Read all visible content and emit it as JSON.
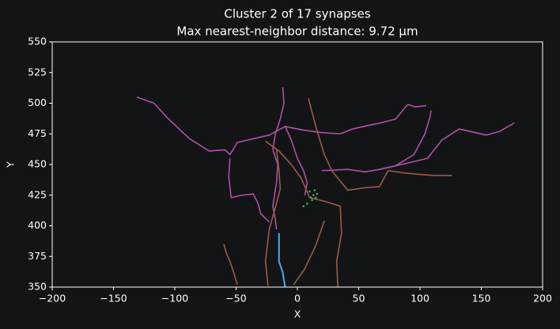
{
  "chart_data": {
    "type": "line",
    "title": "Cluster 2 of 17 synapses",
    "subtitle": "Max nearest-neighbor distance: 9.72 µm",
    "x_label": "X",
    "y_label": "Y",
    "xlim": [
      -200,
      200
    ],
    "xticks": [
      {
        "value": -200,
        "label": "−200"
      },
      {
        "value": -150,
        "label": "−150"
      },
      {
        "value": -100,
        "label": "−100"
      },
      {
        "value": -50,
        "label": "−50"
      },
      0,
      50,
      100,
      150,
      200
    ],
    "ylim": [
      350,
      550
    ],
    "yticks": [
      350,
      375,
      400,
      425,
      450,
      475,
      500,
      525,
      550
    ],
    "series": [
      {
        "color": "#b050a8",
        "x": [
          -131,
          -117,
          -106,
          -88,
          -72,
          -59,
          -55,
          -49,
          -36,
          -23,
          -10,
          5,
          20,
          35
        ],
        "values": [
          505,
          500,
          488,
          471,
          461,
          462,
          458,
          468,
          471,
          474,
          481,
          478,
          476,
          475
        ]
      },
      {
        "color": "#b050a8",
        "x": [
          -12,
          -11,
          -14,
          -18,
          -20,
          -16,
          -17,
          -20,
          -18,
          -17
        ],
        "values": [
          513,
          500,
          487,
          475,
          462,
          450,
          436,
          416,
          405,
          397
        ]
      },
      {
        "color": "#b050a8",
        "x": [
          35,
          45,
          54,
          68,
          80,
          90,
          96,
          105
        ],
        "values": [
          475,
          479,
          481,
          484,
          487,
          499,
          497,
          498
        ]
      },
      {
        "color": "#b050a8",
        "x": [
          20,
          41,
          55,
          67,
          80,
          95,
          104,
          108,
          109
        ],
        "values": [
          445,
          446,
          444,
          446,
          449,
          458,
          475,
          488,
          494
        ]
      },
      {
        "color": "#b050a8",
        "x": [
          67,
          85,
          106,
          118,
          132,
          154,
          165,
          177
        ],
        "values": [
          446,
          450,
          455,
          470,
          479,
          474,
          477,
          484
        ]
      },
      {
        "color": "#b050a8",
        "x": [
          -55,
          -56,
          -54,
          -45,
          -36,
          -32,
          -30,
          -23
        ],
        "values": [
          455,
          440,
          423,
          425,
          426,
          418,
          410,
          403
        ]
      },
      {
        "color": "#b050a8",
        "x": [
          -10,
          -5,
          0,
          5,
          8,
          6
        ],
        "values": [
          481,
          470,
          455,
          445,
          435,
          425
        ]
      },
      {
        "color": "#9b5b4a",
        "x": [
          -26,
          -15,
          -5,
          3,
          10,
          22,
          35,
          36,
          32,
          33
        ],
        "values": [
          469,
          461,
          450,
          439,
          423,
          420,
          416,
          394,
          371,
          350
        ]
      },
      {
        "color": "#9b5b4a",
        "x": [
          9,
          15,
          22,
          28,
          41,
          55,
          67,
          74,
          88,
          99,
          112,
          126
        ],
        "values": [
          504,
          481,
          458,
          445,
          429,
          431,
          432,
          445,
          443,
          442,
          441,
          441
        ]
      },
      {
        "color": "#9b5b4a",
        "x": [
          -60,
          -58,
          -55,
          -52,
          -49
        ],
        "values": [
          385,
          378,
          371,
          362,
          352
        ]
      },
      {
        "color": "#9b5b4a",
        "x": [
          -17,
          -15,
          -14,
          -18,
          -23,
          -26,
          -24
        ],
        "values": [
          462,
          445,
          430,
          415,
          397,
          371,
          351
        ]
      },
      {
        "color": "#9b5b4a",
        "x": [
          -3,
          6,
          15,
          22
        ],
        "values": [
          352,
          365,
          384,
          404
        ]
      },
      {
        "color": "#4a9ee0",
        "x": [
          -15,
          -15,
          -12,
          -10
        ],
        "values": [
          394,
          371,
          362,
          350
        ]
      },
      {
        "color": "#3bb06a",
        "style": "dots",
        "x": [
          10,
          13,
          15,
          12,
          8,
          5,
          14,
          16,
          11
        ],
        "values": [
          428,
          425,
          423,
          421,
          418,
          416,
          429,
          426,
          423
        ]
      }
    ]
  }
}
